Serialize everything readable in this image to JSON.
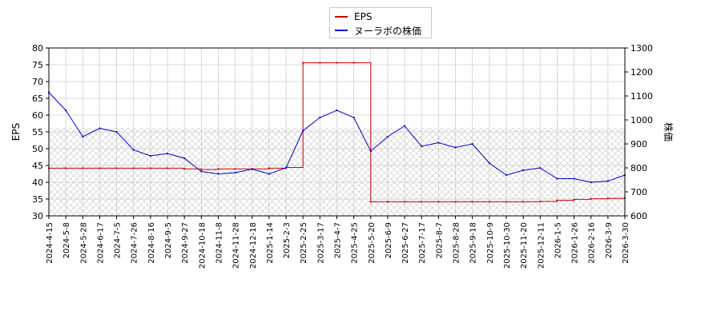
{
  "chart_data": {
    "type": "line",
    "legend_placement": "top-center",
    "grid": true,
    "x": [
      "2024-4-15",
      "2024-5-8",
      "2024-5-28",
      "2024-6-17",
      "2024-7-5",
      "2024-7-26",
      "2024-8-16",
      "2024-9-5",
      "2024-9-27",
      "2024-10-18",
      "2024-11-8",
      "2024-11-28",
      "2024-12-18",
      "2025-1-14",
      "2025-2-3",
      "2025-2-25",
      "2025-3-17",
      "2025-4-7",
      "2025-4-25",
      "2025-5-20",
      "2025-6-9",
      "2025-6-27",
      "2025-7-17",
      "2025-8-7",
      "2025-8-28",
      "2025-9-18",
      "2025-10-9",
      "2025-10-30",
      "2025-11-20",
      "2025-12-11",
      "2026-1-5",
      "2026-1-26",
      "2026-2-16",
      "2026-3-9",
      "2026-3-30"
    ],
    "ylabel": "EPS",
    "y2label": "株価",
    "ylim": [
      30,
      80
    ],
    "y2lim": [
      600,
      1300
    ],
    "yticks": [
      "30",
      "35",
      "40",
      "45",
      "50",
      "55",
      "60",
      "65",
      "70",
      "75",
      "80"
    ],
    "y2ticks": [
      "600",
      "700",
      "800",
      "900",
      "1000",
      "1100",
      "1200",
      "1300"
    ],
    "series": [
      {
        "name": "EPS",
        "color": "#cc0000",
        "axis": "left",
        "values": [
          44.2,
          44.2,
          44.2,
          44.2,
          44.2,
          44.2,
          44.2,
          44.2,
          44.0,
          43.8,
          44.0,
          44.0,
          44.0,
          44.2,
          44.4,
          75.6,
          75.6,
          75.6,
          75.6,
          34.2,
          34.2,
          34.2,
          34.2,
          34.2,
          34.2,
          34.2,
          34.2,
          34.2,
          34.2,
          34.3,
          34.6,
          34.9,
          35.1,
          35.2,
          35.4
        ]
      },
      {
        "name": "ヌーラボの株価",
        "color": "#0000cc",
        "axis": "right",
        "values": [
          1115,
          1040,
          930,
          965,
          950,
          875,
          850,
          860,
          840,
          785,
          775,
          780,
          795,
          775,
          800,
          955,
          1010,
          1040,
          1010,
          870,
          930,
          975,
          890,
          905,
          885,
          900,
          820,
          770,
          790,
          800,
          755,
          755,
          740,
          745,
          770
        ]
      }
    ]
  }
}
